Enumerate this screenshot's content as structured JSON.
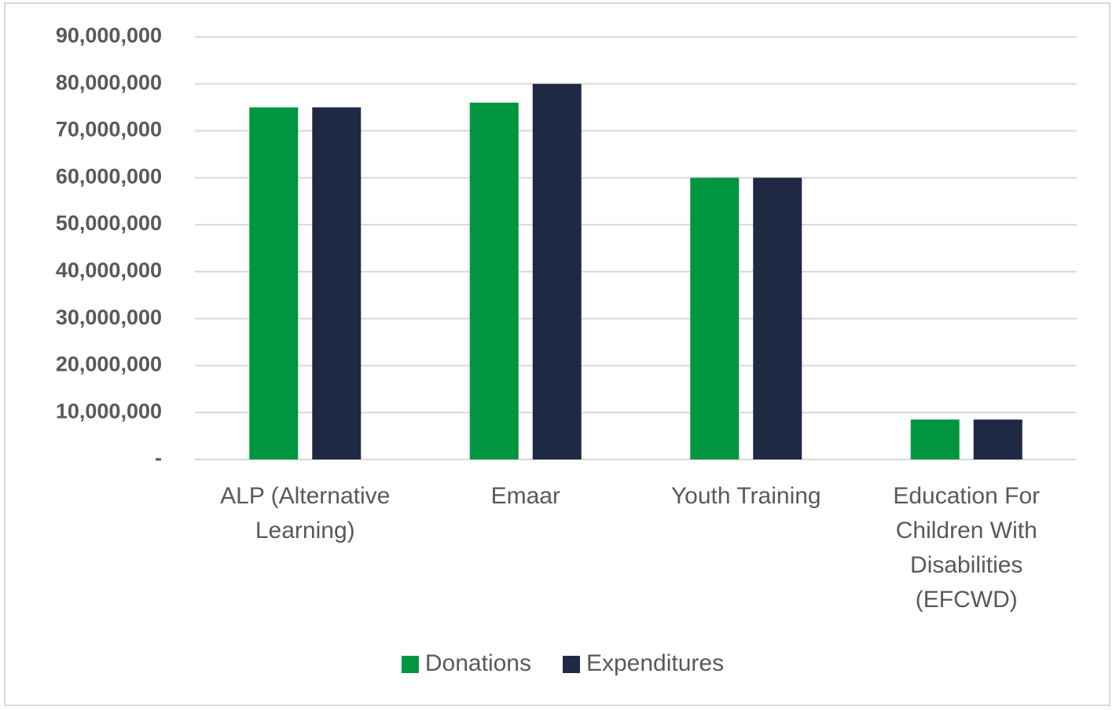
{
  "chart_data": {
    "type": "bar",
    "categories": [
      "ALP (Alternative Learning)",
      "Emaar",
      "Youth Training",
      "Education For Children With Disabilities (EFCWD)"
    ],
    "series": [
      {
        "name": "Donations",
        "color": "#00953f",
        "values": [
          75000000,
          76000000,
          60000000,
          8500000
        ]
      },
      {
        "name": "Expenditures",
        "color": "#1f2944",
        "values": [
          75000000,
          80000000,
          60000000,
          8500000
        ]
      }
    ],
    "ylim": [
      0,
      90000000
    ],
    "yticks": [
      {
        "value": 0,
        "label": "-"
      },
      {
        "value": 10000000,
        "label": "10,000,000"
      },
      {
        "value": 20000000,
        "label": "20,000,000"
      },
      {
        "value": 30000000,
        "label": "30,000,000"
      },
      {
        "value": 40000000,
        "label": "40,000,000"
      },
      {
        "value": 50000000,
        "label": "50,000,000"
      },
      {
        "value": 60000000,
        "label": "60,000,000"
      },
      {
        "value": 70000000,
        "label": "70,000,000"
      },
      {
        "value": 80000000,
        "label": "80,000,000"
      },
      {
        "value": 90000000,
        "label": "90,000,000"
      }
    ],
    "grid": true,
    "legend": "bottom"
  }
}
